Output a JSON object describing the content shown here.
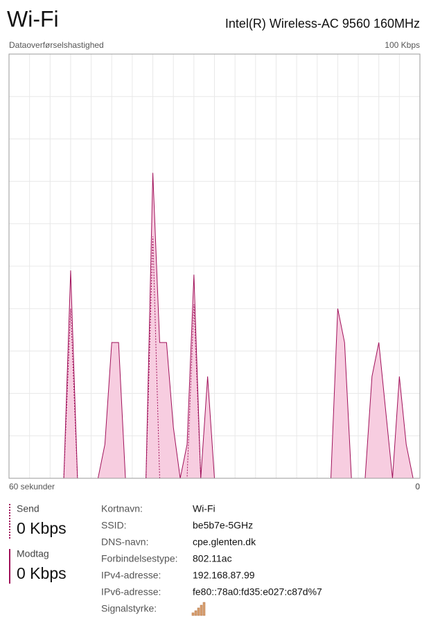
{
  "header": {
    "title": "Wi-Fi",
    "adapter": "Intel(R) Wireless-AC 9560 160MHz"
  },
  "chart_data": {
    "type": "line",
    "title": "Dataoverførselshastighed",
    "x": [
      60,
      59,
      58,
      57,
      56,
      55,
      54,
      53,
      52,
      51,
      50,
      49,
      48,
      47,
      46,
      45,
      44,
      43,
      42,
      41,
      40,
      39,
      38,
      37,
      36,
      35,
      34,
      33,
      32,
      31,
      30,
      29,
      28,
      27,
      26,
      25,
      24,
      23,
      22,
      21,
      20,
      19,
      18,
      17,
      16,
      15,
      14,
      13,
      12,
      11,
      10,
      9,
      8,
      7,
      6,
      5,
      4,
      3,
      2,
      1,
      0
    ],
    "xlim": [
      60,
      0
    ],
    "xticks": [
      {
        "value": 60,
        "label": "60 sekunder"
      },
      0
    ],
    "ylim": [
      0,
      100
    ],
    "yticks": [
      0,
      {
        "value": 100,
        "label": "100 Kbps"
      }
    ],
    "grid": true,
    "series": [
      {
        "name": "Modtag",
        "color": "#a0115a",
        "fill": "#f7cde0",
        "dashed": false,
        "values": [
          0,
          0,
          0,
          0,
          0,
          0,
          0,
          0,
          0,
          49,
          0,
          0,
          0,
          0,
          8,
          32,
          32,
          0,
          0,
          0,
          0,
          72,
          32,
          32,
          12,
          0,
          8,
          48,
          0,
          24,
          0,
          0,
          0,
          0,
          0,
          0,
          0,
          0,
          0,
          0,
          0,
          0,
          0,
          0,
          0,
          0,
          0,
          0,
          40,
          32,
          0,
          0,
          0,
          24,
          32,
          16,
          0,
          24,
          8,
          0,
          0
        ]
      },
      {
        "name": "Send",
        "color": "#a0115a",
        "fill": "none",
        "dashed": true,
        "values": [
          0,
          0,
          0,
          0,
          0,
          0,
          0,
          0,
          0,
          40,
          0,
          0,
          0,
          0,
          0,
          0,
          0,
          0,
          0,
          0,
          0,
          57,
          0,
          0,
          0,
          0,
          0,
          41,
          0,
          0,
          0,
          0,
          0,
          0,
          0,
          0,
          0,
          0,
          0,
          0,
          0,
          0,
          0,
          0,
          0,
          0,
          0,
          0,
          0,
          0,
          0,
          0,
          0,
          0,
          0,
          0,
          0,
          0,
          0,
          0,
          0
        ]
      }
    ]
  },
  "stats": {
    "send": "0 Kbps",
    "receive": "0 Kbps"
  },
  "properties": [
    {
      "label": "Kortnavn:",
      "value": "Wi-Fi"
    },
    {
      "label": "SSID:",
      "value": "be5b7e-5GHz"
    },
    {
      "label": "DNS-navn:",
      "value": "cpe.glenten.dk"
    },
    {
      "label": "Forbindelsestype:",
      "value": "802.11ac"
    },
    {
      "label": "IPv4-adresse:",
      "value": "192.168.87.99"
    },
    {
      "label": "IPv6-adresse:",
      "value": "fe80::78a0:fd35:e027:c87d%7"
    },
    {
      "label": "Signalstyrke:"
    }
  ]
}
